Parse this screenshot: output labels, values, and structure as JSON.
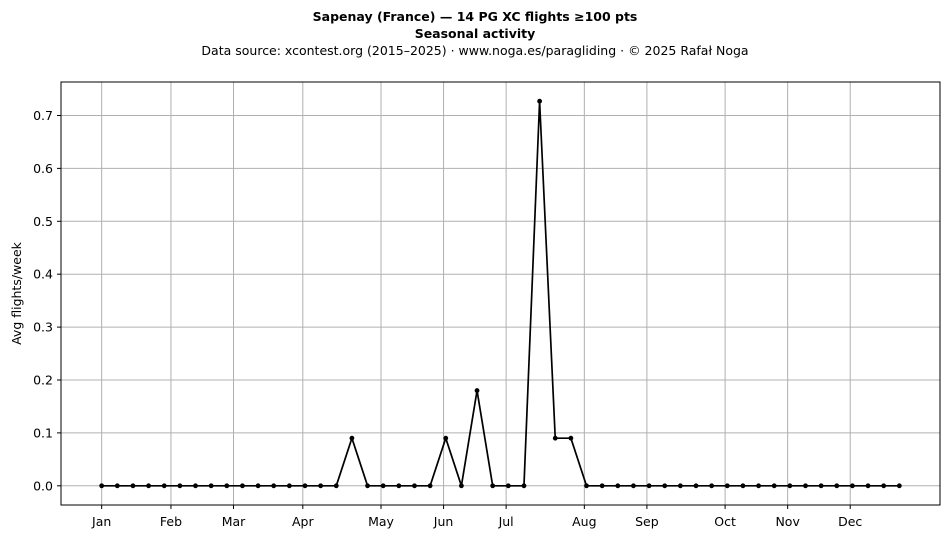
{
  "chart_data": {
    "type": "line",
    "title": "Sapenay (France)  —  14 PG XC flights ≥100 pts",
    "subtitle": "Seasonal activity",
    "source_line": "Data source: xcontest.org (2015–2025)  ·  www.noga.es/paragliding  ·  © 2025 Rafał Noga",
    "xlabel": "",
    "ylabel": "Avg flights/week",
    "x_unit": "week of year",
    "x": [
      1,
      2,
      3,
      4,
      5,
      6,
      7,
      8,
      9,
      10,
      11,
      12,
      13,
      14,
      15,
      16,
      17,
      18,
      19,
      20,
      21,
      22,
      23,
      24,
      25,
      26,
      27,
      28,
      29,
      30,
      31,
      32,
      33,
      34,
      35,
      36,
      37,
      38,
      39,
      40,
      41,
      42,
      43,
      44,
      45,
      46,
      47,
      48,
      49,
      50,
      51,
      52
    ],
    "values": [
      0,
      0,
      0,
      0,
      0,
      0,
      0,
      0,
      0,
      0,
      0,
      0,
      0,
      0,
      0,
      0,
      0.09,
      0,
      0,
      0,
      0,
      0,
      0.09,
      0,
      0.18,
      0,
      0,
      0,
      0.727,
      0.09,
      0.09,
      0,
      0,
      0,
      0,
      0,
      0,
      0,
      0,
      0,
      0,
      0,
      0,
      0,
      0,
      0,
      0,
      0,
      0,
      0,
      0,
      0
    ],
    "xticks": [
      {
        "label": "Jan",
        "week": 1
      },
      {
        "label": "Feb",
        "week": 5.43
      },
      {
        "label": "Mar",
        "week": 9.43
      },
      {
        "label": "Apr",
        "week": 13.86
      },
      {
        "label": "May",
        "week": 18.86
      },
      {
        "label": "Jun",
        "week": 22.86
      },
      {
        "label": "Jul",
        "week": 26.86
      },
      {
        "label": "Aug",
        "week": 31.86
      },
      {
        "label": "Sep",
        "week": 35.86
      },
      {
        "label": "Oct",
        "week": 40.86
      },
      {
        "label": "Nov",
        "week": 44.86
      },
      {
        "label": "Dec",
        "week": 48.86
      }
    ],
    "yticks": [
      0.0,
      0.1,
      0.2,
      0.3,
      0.4,
      0.5,
      0.6,
      0.7
    ],
    "ytick_labels": [
      "0.0",
      "0.1",
      "0.2",
      "0.3",
      "0.4",
      "0.5",
      "0.6",
      "0.7"
    ],
    "xlim": [
      -1.6,
      54.6
    ],
    "ylim": [
      -0.0363,
      0.7633
    ],
    "grid": true,
    "legend": "none",
    "line_color": "#000000",
    "grid_color": "#b0b0b0"
  }
}
